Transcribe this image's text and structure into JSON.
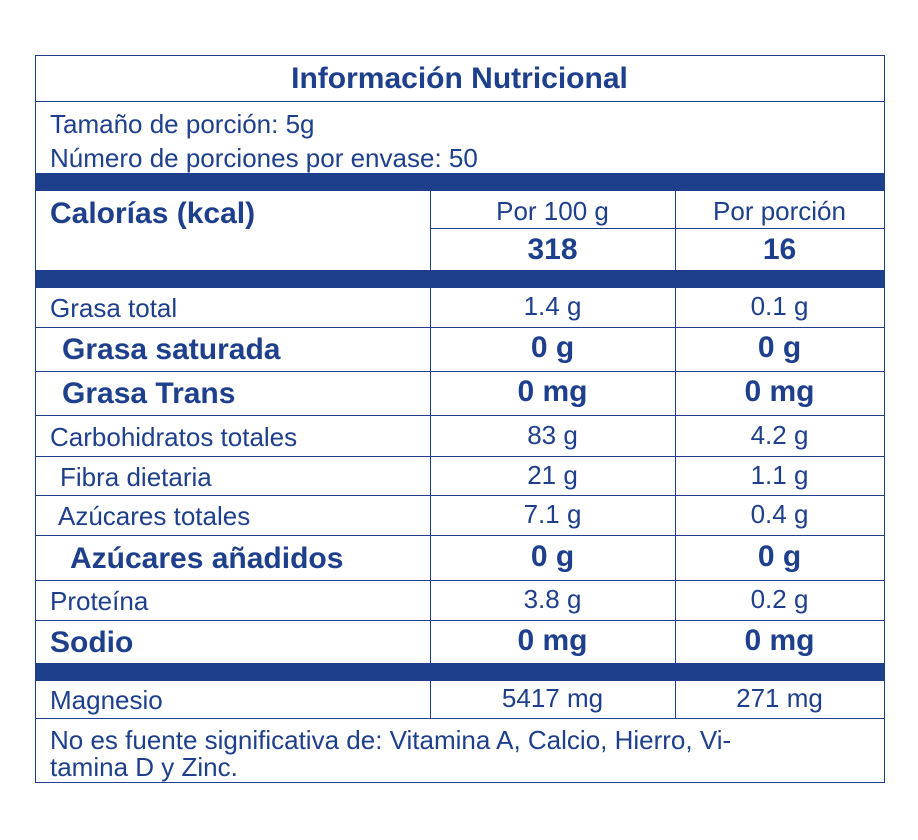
{
  "title": "Información Nutricional",
  "serving": {
    "size": "Tamaño de porción: 5g",
    "count": "Número de porciones por envase: 50"
  },
  "calories": {
    "label": "Calorías (kcal)",
    "headers": [
      "Por 100 g",
      "Por porción"
    ],
    "values": [
      "318",
      "16"
    ]
  },
  "rows": [
    [
      "Grasa total",
      "1.4 g",
      "0.1 g"
    ],
    [
      "Grasa saturada",
      "0 g",
      "0 g"
    ],
    [
      "Grasa Trans",
      "0 mg",
      "0 mg"
    ],
    [
      "Carbohidratos totales",
      "83 g",
      "4.2 g"
    ],
    [
      "Fibra dietaria",
      "21 g",
      "1.1 g"
    ],
    [
      "Azúcares totales",
      "7.1 g",
      "0.4 g"
    ],
    [
      "Azúcares añadidos",
      "0 g",
      "0 g"
    ],
    [
      "Proteína",
      "3.8 g",
      "0.2 g"
    ],
    [
      "Sodio",
      "0 mg",
      "0 mg"
    ],
    [
      "Magnesio",
      "5417 mg",
      "271 mg"
    ]
  ],
  "footer": [
    "No es fuente significativa de: Vitamina A, Calcio, Hierro, Vi-",
    "tamina D y Zinc."
  ]
}
